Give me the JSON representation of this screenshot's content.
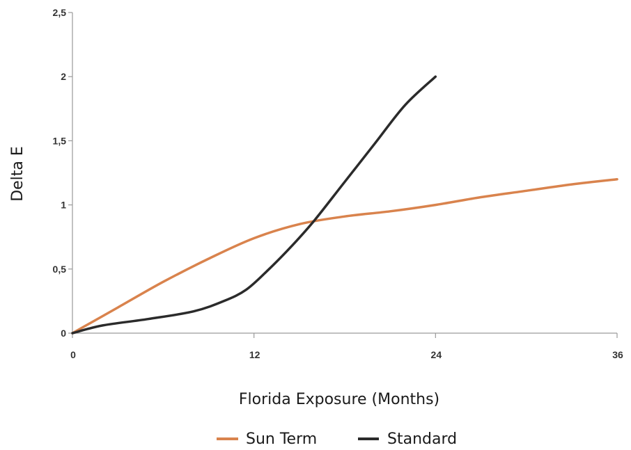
{
  "chart_data": {
    "type": "line",
    "xlabel": "Florida Exposure (Months)",
    "ylabel": "Delta E",
    "xlim": [
      0,
      36
    ],
    "ylim": [
      0,
      2.5
    ],
    "x_ticks": [
      {
        "value": 0,
        "label": "0"
      },
      {
        "value": 12,
        "label": "12"
      },
      {
        "value": 24,
        "label": "24"
      },
      {
        "value": 36,
        "label": "36"
      }
    ],
    "y_ticks": [
      {
        "value": 0,
        "label": "0"
      },
      {
        "value": 0.5,
        "label": "0,5"
      },
      {
        "value": 1,
        "label": "1"
      },
      {
        "value": 1.5,
        "label": "1,5"
      },
      {
        "value": 2,
        "label": "2"
      },
      {
        "value": 2.5,
        "label": "2,5"
      }
    ],
    "legend_position": "bottom-center",
    "grid": false,
    "series": [
      {
        "name": "Sun Term",
        "color": "#d9834d",
        "points": [
          [
            0,
            0
          ],
          [
            3,
            0.2
          ],
          [
            6,
            0.4
          ],
          [
            9,
            0.58
          ],
          [
            12,
            0.74
          ],
          [
            15,
            0.85
          ],
          [
            18,
            0.91
          ],
          [
            21,
            0.95
          ],
          [
            24,
            1.0
          ],
          [
            27,
            1.06
          ],
          [
            30,
            1.11
          ],
          [
            33,
            1.16
          ],
          [
            36,
            1.2
          ]
        ]
      },
      {
        "name": "Standard",
        "color": "#2b2b2b",
        "points": [
          [
            0,
            0
          ],
          [
            2,
            0.06
          ],
          [
            5,
            0.11
          ],
          [
            8,
            0.17
          ],
          [
            10,
            0.25
          ],
          [
            11.5,
            0.34
          ],
          [
            13,
            0.5
          ],
          [
            14.5,
            0.68
          ],
          [
            16,
            0.88
          ],
          [
            18,
            1.18
          ],
          [
            20,
            1.48
          ],
          [
            22,
            1.78
          ],
          [
            24,
            2.0
          ]
        ]
      }
    ]
  }
}
